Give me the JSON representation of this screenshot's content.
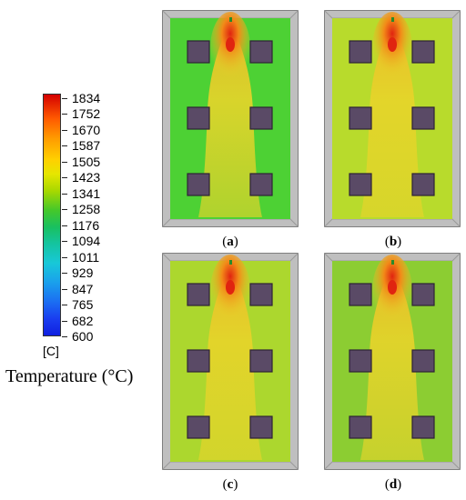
{
  "colorbar": {
    "ticks": [
      "1834",
      "1752",
      "1670",
      "1587",
      "1505",
      "1423",
      "1341",
      "1258",
      "1176",
      "1094",
      "1011",
      "929",
      "847",
      "765",
      "682",
      "600"
    ],
    "unit": "[C]",
    "title": "Temperature (°C)",
    "min": 600,
    "max": 1834
  },
  "panels": [
    {
      "caption_open": "(",
      "letter": "a",
      "caption_close": ")",
      "field": "#4dd134"
    },
    {
      "caption_open": "(",
      "letter": "b",
      "caption_close": ")",
      "field": "#b8db2c"
    },
    {
      "caption_open": "(",
      "letter": "c",
      "caption_close": ")",
      "field": "#acd72e"
    },
    {
      "caption_open": "(",
      "letter": "d",
      "caption_close": ")",
      "field": "#8ccd32"
    }
  ],
  "colors": {
    "frame": "#bfbfbf",
    "frame_edge": "#7f7f7f",
    "block": "#5a4a66",
    "plume": "#e8d42a",
    "hot": "#e02410"
  }
}
